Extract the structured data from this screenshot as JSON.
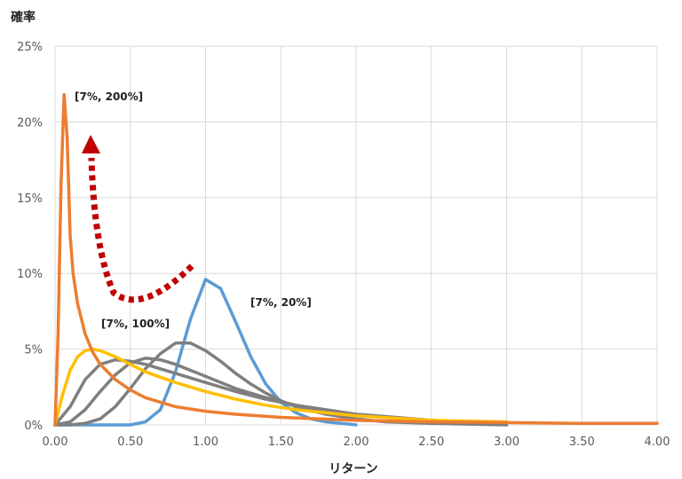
{
  "chart_data": {
    "type": "line",
    "ylabel": "確率",
    "xlabel": "リターン",
    "xlim": [
      0,
      4
    ],
    "ylim": [
      0,
      0.25
    ],
    "grid": true,
    "x_ticks": [
      "0.00",
      "0.50",
      "1.00",
      "1.50",
      "2.00",
      "2.50",
      "3.00",
      "3.50",
      "4.00"
    ],
    "y_ticks": [
      "0%",
      "5%",
      "10%",
      "15%",
      "20%",
      "25%"
    ],
    "colors": {
      "s20": "#5b9bd5",
      "gray": "#7f7f7f",
      "s100": "#ffc000",
      "s200": "#ed7d31",
      "arrow": "#c00000",
      "grid": "#d9d9d9"
    },
    "annotations": [
      {
        "text": "[7%, 200%]"
      },
      {
        "text": "[7%, 20%]"
      },
      {
        "text": "[7%, 100%]"
      }
    ],
    "series": [
      {
        "x": [
          0,
          0.1,
          0.2,
          0.3,
          0.4,
          0.5,
          0.6,
          0.7,
          0.8,
          0.9,
          1.0,
          1.1,
          1.2,
          1.3,
          1.4,
          1.5,
          1.6,
          1.7,
          1.8,
          1.9,
          2.0
        ],
        "y": [
          0,
          0,
          0,
          0,
          0,
          0,
          0.002,
          0.01,
          0.035,
          0.07,
          0.096,
          0.09,
          0.068,
          0.045,
          0.027,
          0.015,
          0.008,
          0.004,
          0.002,
          0.001,
          0
        ]
      },
      {
        "x": [
          0,
          0.1,
          0.2,
          0.3,
          0.4,
          0.5,
          0.6,
          0.7,
          0.8,
          0.9,
          1.0,
          1.1,
          1.2,
          1.3,
          1.4,
          1.5,
          1.6,
          1.8,
          2.0,
          2.2,
          2.5,
          3.0
        ],
        "y": [
          0,
          0,
          0.001,
          0.004,
          0.012,
          0.024,
          0.037,
          0.047,
          0.054,
          0.054,
          0.049,
          0.042,
          0.034,
          0.027,
          0.021,
          0.016,
          0.012,
          0.007,
          0.004,
          0.002,
          0.001,
          0
        ]
      },
      {
        "x": [
          0,
          0.1,
          0.2,
          0.3,
          0.4,
          0.5,
          0.6,
          0.7,
          0.8,
          0.9,
          1.0,
          1.2,
          1.4,
          1.6,
          1.8,
          2.0,
          2.5,
          3.0
        ],
        "y": [
          0,
          0.002,
          0.01,
          0.022,
          0.033,
          0.041,
          0.044,
          0.043,
          0.04,
          0.036,
          0.032,
          0.024,
          0.018,
          0.013,
          0.009,
          0.007,
          0.003,
          0.001
        ]
      },
      {
        "x": [
          0,
          0.1,
          0.2,
          0.3,
          0.4,
          0.5,
          0.6,
          0.8,
          1.0,
          1.2,
          1.4,
          1.6,
          1.8,
          2.0,
          2.5,
          3.0
        ],
        "y": [
          0,
          0.012,
          0.03,
          0.04,
          0.043,
          0.042,
          0.04,
          0.034,
          0.028,
          0.022,
          0.017,
          0.013,
          0.01,
          0.007,
          0.003,
          0.001
        ]
      },
      {
        "x": [
          0,
          0.05,
          0.1,
          0.15,
          0.2,
          0.25,
          0.3,
          0.4,
          0.5,
          0.6,
          0.8,
          1.0,
          1.2,
          1.4,
          1.6,
          1.8,
          2.0,
          2.5,
          3.0
        ],
        "y": [
          0,
          0.02,
          0.036,
          0.045,
          0.049,
          0.05,
          0.049,
          0.045,
          0.04,
          0.035,
          0.028,
          0.022,
          0.017,
          0.013,
          0.01,
          0.008,
          0.006,
          0.003,
          0.002
        ]
      },
      {
        "x": [
          0,
          0.02,
          0.04,
          0.06,
          0.08,
          0.1,
          0.12,
          0.15,
          0.2,
          0.25,
          0.3,
          0.4,
          0.5,
          0.6,
          0.7,
          0.8,
          1.0,
          1.2,
          1.5,
          2.0,
          2.5,
          3.0,
          3.5,
          4.0
        ],
        "y": [
          0,
          0.06,
          0.16,
          0.218,
          0.19,
          0.125,
          0.1,
          0.08,
          0.06,
          0.048,
          0.04,
          0.03,
          0.023,
          0.018,
          0.015,
          0.012,
          0.009,
          0.007,
          0.005,
          0.003,
          0.002,
          0.0015,
          0.001,
          0.001
        ]
      }
    ]
  }
}
